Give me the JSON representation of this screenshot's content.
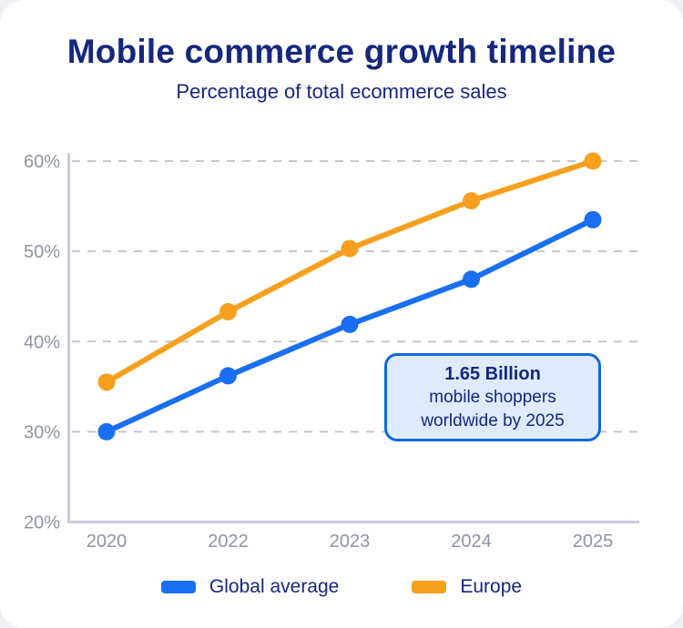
{
  "page": {
    "title": "Mobile commerce growth timeline",
    "subtitle": "Percentage of total ecommerce sales"
  },
  "annotation": {
    "headline": "1.65 Billion",
    "line2": "mobile shoppers",
    "line3": "worldwide by 2025"
  },
  "legend": {
    "items": [
      {
        "label": "Global average",
        "color": "#1a6ef2"
      },
      {
        "label": "Europe",
        "color": "#f6a01e"
      }
    ]
  },
  "colors": {
    "navy_text": "#16277d",
    "blue_series": "#1a6ef2",
    "orange_series": "#f6a01e",
    "axis_label": "#8e94a4",
    "gridline": "#c5c7cd",
    "axis_line": "#c9cbdf",
    "annotation_bg": "#ddebfc",
    "annotation_border": "#1169d8"
  },
  "chart_data": {
    "type": "line",
    "title": "Mobile commerce growth timeline",
    "subtitle": "Percentage of total ecommerce sales",
    "categories": [
      "2020",
      "2022",
      "2023",
      "2024",
      "2025"
    ],
    "series": [
      {
        "name": "Global average",
        "color": "#1a6ef2",
        "values": [
          30,
          36.2,
          41.9,
          46.9,
          53.5
        ]
      },
      {
        "name": "Europe",
        "color": "#f6a01e",
        "values": [
          35.5,
          43.3,
          50.3,
          55.6,
          60
        ]
      }
    ],
    "xlabel": "",
    "ylabel": "",
    "ylim": [
      20,
      60
    ],
    "yticks": [
      20,
      30,
      40,
      50,
      60
    ],
    "ytick_format": "percent",
    "grid": "horizontal-dashed",
    "legend_position": "bottom",
    "annotation_text": "1.65 Billion mobile shoppers worldwide by 2025"
  }
}
